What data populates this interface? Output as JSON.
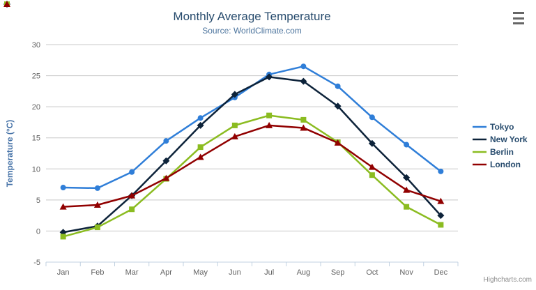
{
  "header": {
    "title": "Monthly Average Temperature",
    "subtitle": "Source: WorldClimate.com"
  },
  "export_menu": {
    "icon": "hamburger-icon"
  },
  "credits": {
    "label": "Highcharts.com"
  },
  "chart_data": {
    "type": "line",
    "title": "Monthly Average Temperature",
    "subtitle": "Source: WorldClimate.com",
    "categories": [
      "Jan",
      "Feb",
      "Mar",
      "Apr",
      "May",
      "Jun",
      "Jul",
      "Aug",
      "Sep",
      "Oct",
      "Nov",
      "Dec"
    ],
    "series": [
      {
        "name": "Tokyo",
        "color": "#2f7ed8",
        "marker": "circle",
        "values": [
          7.0,
          6.9,
          9.5,
          14.5,
          18.2,
          21.5,
          25.2,
          26.5,
          23.3,
          18.3,
          13.9,
          9.6
        ]
      },
      {
        "name": "New York",
        "color": "#0d233a",
        "marker": "diamond",
        "values": [
          -0.2,
          0.8,
          5.7,
          11.3,
          17.0,
          22.0,
          24.8,
          24.1,
          20.1,
          14.1,
          8.6,
          2.5
        ]
      },
      {
        "name": "Berlin",
        "color": "#8bbc21",
        "marker": "square",
        "values": [
          -0.9,
          0.6,
          3.5,
          8.4,
          13.5,
          17.0,
          18.6,
          17.9,
          14.3,
          9.0,
          3.9,
          1.0
        ]
      },
      {
        "name": "London",
        "color": "#910000",
        "marker": "triangle",
        "values": [
          3.9,
          4.2,
          5.7,
          8.5,
          11.9,
          15.2,
          17.0,
          16.6,
          14.2,
          10.3,
          6.6,
          4.8
        ]
      }
    ],
    "xlabel": "",
    "ylabel": "Temperature (°C)",
    "ylim": [
      -5,
      30
    ],
    "ytick_interval": 5,
    "grid": true,
    "legend_position": "right"
  },
  "colors": {
    "title": "#274b6d",
    "subtitle": "#4d759e",
    "axis_label": "#606060",
    "axis_title": "#4572a7",
    "grid": "#c8c8c8",
    "axis_line": "#c0d0e0",
    "legend_text": "#274b6d",
    "credits": "#909090",
    "background": "#ffffff"
  }
}
